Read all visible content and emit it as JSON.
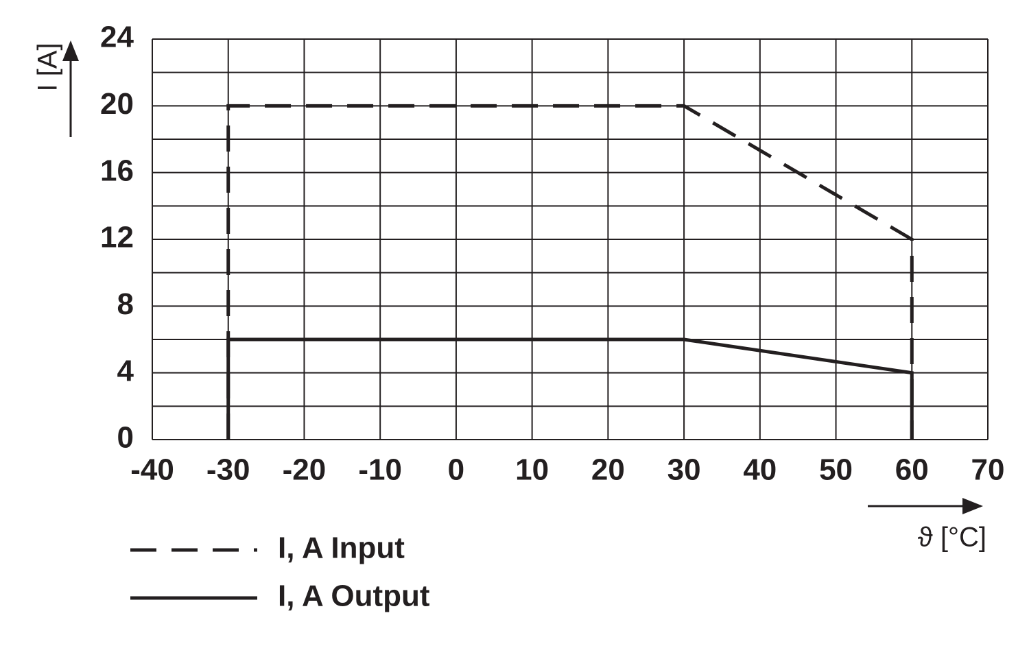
{
  "chart_data": {
    "type": "line",
    "x_label": "ϑ [°C]",
    "y_label": "I [A]",
    "x": [
      -30,
      -30,
      30,
      60,
      60
    ],
    "series": [
      {
        "name": "I, A Input",
        "color": "#231f20",
        "dash": true,
        "values": [
          0,
          20,
          20,
          12,
          0
        ]
      },
      {
        "name": "I, A Output",
        "color": "#231f20",
        "dash": false,
        "values": [
          0,
          6,
          6,
          4,
          0
        ]
      }
    ],
    "xlim": [
      -40,
      70
    ],
    "xticks": [
      -40,
      -30,
      -20,
      -10,
      0,
      10,
      20,
      30,
      40,
      50,
      60,
      70
    ],
    "ylim": [
      0,
      24
    ],
    "yticks": [
      0,
      4,
      8,
      12,
      16,
      20,
      24
    ],
    "y_minor_ticks": [
      2,
      6,
      10,
      14,
      18,
      22
    ],
    "grid": true
  }
}
